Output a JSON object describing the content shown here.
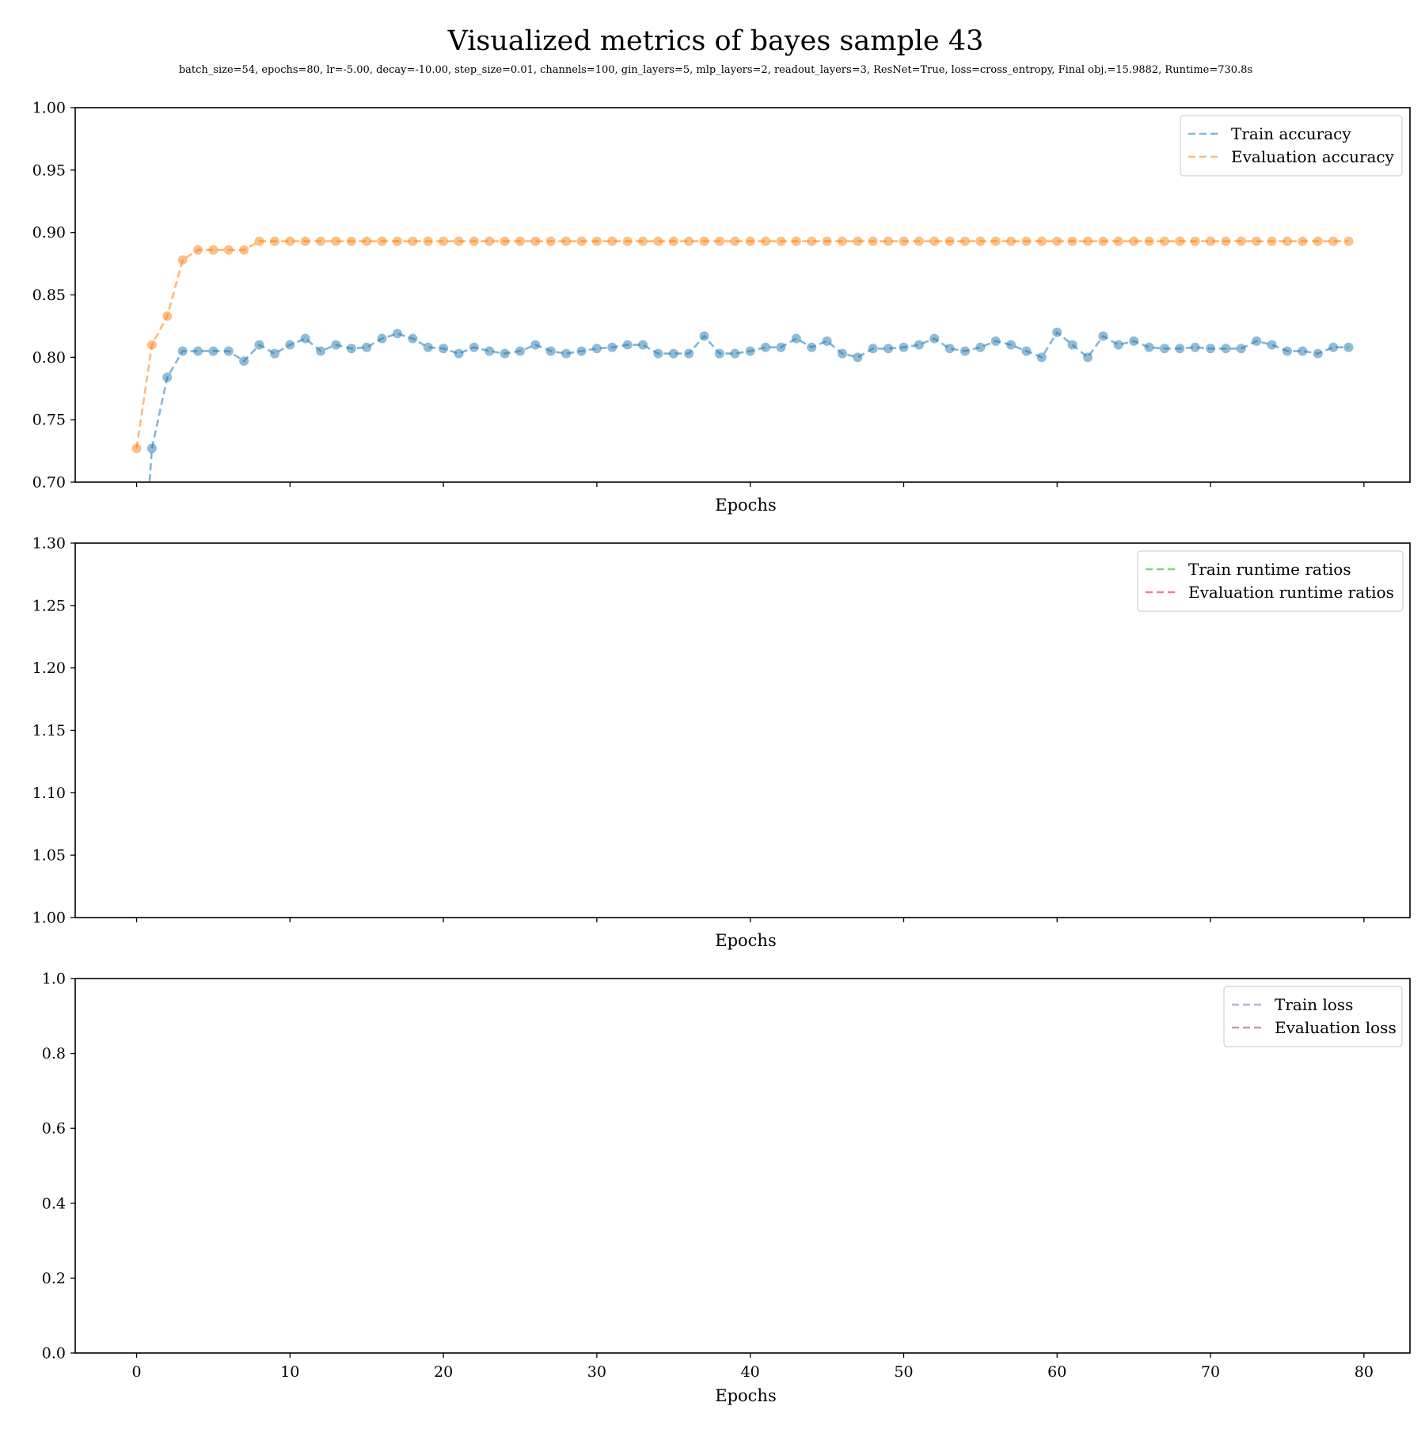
{
  "figure": {
    "title": "Visualized metrics of bayes sample 43",
    "subtitle": "batch_size=54, epochs=80, lr=-5.00, decay=-10.00, step_size=0.01, channels=100, gin_layers=5, mlp_layers=2, readout_layers=3, ResNet=True, loss=cross_entropy, Final obj.=15.9882, Runtime=730.8s"
  },
  "chart_data": [
    {
      "type": "line",
      "title": "",
      "xlabel": "Epochs",
      "ylabel": "",
      "xlim": [
        -4,
        83
      ],
      "ylim": [
        0.7,
        1.0
      ],
      "x_ticks": [
        0,
        10,
        20,
        30,
        40,
        50,
        60,
        70,
        80
      ],
      "x_tick_labels_visible": false,
      "y_ticks": [
        0.7,
        0.75,
        0.8,
        0.85,
        0.9,
        0.95,
        1.0
      ],
      "y_tick_labels": [
        "0.70",
        "0.75",
        "0.80",
        "0.85",
        "0.90",
        "0.95",
        "1.00"
      ],
      "grid": false,
      "legend_position": "top-right",
      "series": [
        {
          "name": "Train accuracy",
          "color": "#1f77b4",
          "style": "dashed-with-markers",
          "x": [
            0,
            1,
            2,
            3,
            4,
            5,
            6,
            7,
            8,
            9,
            10,
            11,
            12,
            13,
            14,
            15,
            16,
            17,
            18,
            19,
            20,
            21,
            22,
            23,
            24,
            25,
            26,
            27,
            28,
            29,
            30,
            31,
            32,
            33,
            34,
            35,
            36,
            37,
            38,
            39,
            40,
            41,
            42,
            43,
            44,
            45,
            46,
            47,
            48,
            49,
            50,
            51,
            52,
            53,
            54,
            55,
            56,
            57,
            58,
            59,
            60,
            61,
            62,
            63,
            64,
            65,
            66,
            67,
            68,
            69,
            70,
            71,
            72,
            73,
            74,
            75,
            76,
            77,
            78,
            79
          ],
          "values": [
            0.55,
            0.727,
            0.784,
            0.805,
            0.805,
            0.805,
            0.805,
            0.797,
            0.81,
            0.803,
            0.81,
            0.815,
            0.805,
            0.81,
            0.807,
            0.808,
            0.815,
            0.819,
            0.815,
            0.808,
            0.807,
            0.803,
            0.808,
            0.805,
            0.803,
            0.805,
            0.81,
            0.805,
            0.803,
            0.805,
            0.807,
            0.808,
            0.81,
            0.81,
            0.803,
            0.803,
            0.803,
            0.817,
            0.803,
            0.803,
            0.805,
            0.808,
            0.808,
            0.815,
            0.808,
            0.813,
            0.803,
            0.8,
            0.807,
            0.807,
            0.808,
            0.81,
            0.815,
            0.807,
            0.805,
            0.808,
            0.813,
            0.81,
            0.805,
            0.8,
            0.82,
            0.81,
            0.8,
            0.817,
            0.81,
            0.813,
            0.808,
            0.807,
            0.807,
            0.808,
            0.807,
            0.807,
            0.807,
            0.813,
            0.81,
            0.805,
            0.805,
            0.803,
            0.808,
            0.808
          ],
          "marker_from_index": 1
        },
        {
          "name": "Evaluation accuracy",
          "color": "#ff7f0e",
          "style": "dashed-with-markers",
          "x": [
            0,
            1,
            2,
            3,
            4,
            5,
            6,
            7,
            8,
            9,
            10,
            11,
            12,
            13,
            14,
            15,
            16,
            17,
            18,
            19,
            20,
            21,
            22,
            23,
            24,
            25,
            26,
            27,
            28,
            29,
            30,
            31,
            32,
            33,
            34,
            35,
            36,
            37,
            38,
            39,
            40,
            41,
            42,
            43,
            44,
            45,
            46,
            47,
            48,
            49,
            50,
            51,
            52,
            53,
            54,
            55,
            56,
            57,
            58,
            59,
            60,
            61,
            62,
            63,
            64,
            65,
            66,
            67,
            68,
            69,
            70,
            71,
            72,
            73,
            74,
            75,
            76,
            77,
            78,
            79
          ],
          "values": [
            0.727,
            0.81,
            0.833,
            0.878,
            0.886,
            0.886,
            0.886,
            0.886,
            0.893,
            0.893,
            0.893,
            0.893,
            0.893,
            0.893,
            0.893,
            0.893,
            0.893,
            0.893,
            0.893,
            0.893,
            0.893,
            0.893,
            0.893,
            0.893,
            0.893,
            0.893,
            0.893,
            0.893,
            0.893,
            0.893,
            0.893,
            0.893,
            0.893,
            0.893,
            0.893,
            0.893,
            0.893,
            0.893,
            0.893,
            0.893,
            0.893,
            0.893,
            0.893,
            0.893,
            0.893,
            0.893,
            0.893,
            0.893,
            0.893,
            0.893,
            0.893,
            0.893,
            0.893,
            0.893,
            0.893,
            0.893,
            0.893,
            0.893,
            0.893,
            0.893,
            0.893,
            0.893,
            0.893,
            0.893,
            0.893,
            0.893,
            0.893,
            0.893,
            0.893,
            0.893,
            0.893,
            0.893,
            0.893,
            0.893,
            0.893,
            0.893,
            0.893,
            0.893,
            0.893,
            0.893
          ],
          "marker_from_index": 0
        }
      ]
    },
    {
      "type": "line",
      "title": "",
      "xlabel": "Epochs",
      "ylabel": "",
      "xlim": [
        -4,
        83
      ],
      "ylim": [
        1.0,
        1.3
      ],
      "x_ticks": [
        0,
        10,
        20,
        30,
        40,
        50,
        60,
        70,
        80
      ],
      "x_tick_labels_visible": false,
      "y_ticks": [
        1.0,
        1.05,
        1.1,
        1.15,
        1.2,
        1.25,
        1.3
      ],
      "y_tick_labels": [
        "1.00",
        "1.05",
        "1.10",
        "1.15",
        "1.20",
        "1.25",
        "1.30"
      ],
      "grid": false,
      "legend_position": "top-right",
      "series": [
        {
          "name": "Train runtime ratios",
          "color": "#2ca02c",
          "style": "dashed",
          "x": [],
          "values": []
        },
        {
          "name": "Evaluation runtime ratios",
          "color": "#d62728",
          "style": "dashed",
          "x": [],
          "values": []
        }
      ]
    },
    {
      "type": "line",
      "title": "",
      "xlabel": "Epochs",
      "ylabel": "",
      "xlim": [
        -4,
        83
      ],
      "ylim": [
        0.0,
        1.0
      ],
      "x_ticks": [
        0,
        10,
        20,
        30,
        40,
        50,
        60,
        70,
        80
      ],
      "x_tick_labels": [
        "0",
        "10",
        "20",
        "30",
        "40",
        "50",
        "60",
        "70",
        "80"
      ],
      "x_tick_labels_visible": true,
      "y_ticks": [
        0.0,
        0.2,
        0.4,
        0.6,
        0.8,
        1.0
      ],
      "y_tick_labels": [
        "0.0",
        "0.2",
        "0.4",
        "0.6",
        "0.8",
        "1.0"
      ],
      "grid": false,
      "legend_position": "top-right",
      "series": [
        {
          "name": "Train loss",
          "color": "#9467bd",
          "style": "dashed",
          "x": [],
          "values": []
        },
        {
          "name": "Evaluation loss",
          "color": "#8c564b",
          "style": "dashed",
          "x": [],
          "values": []
        }
      ]
    }
  ]
}
